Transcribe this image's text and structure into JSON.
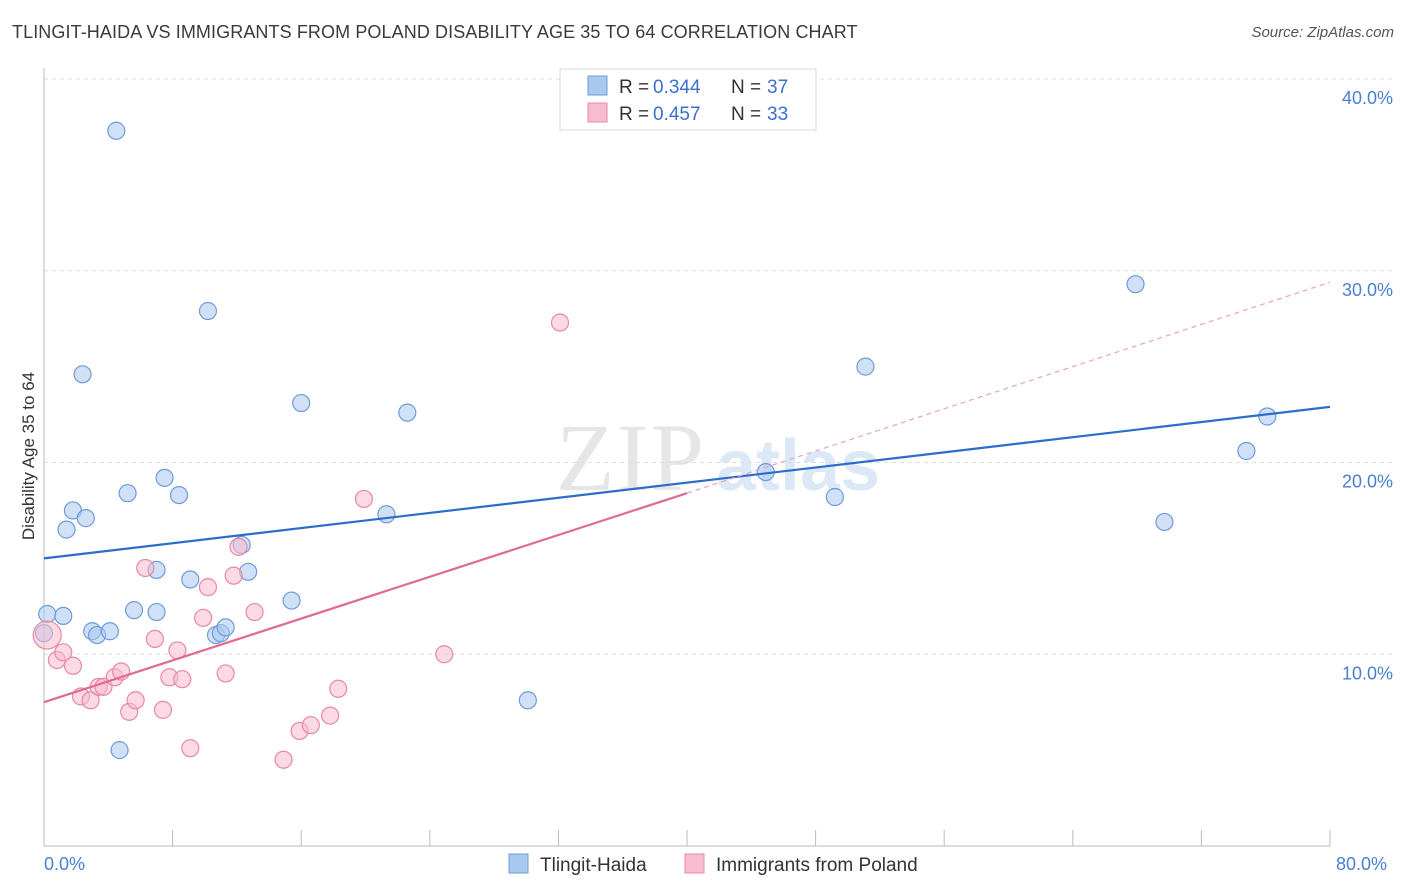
{
  "title": "TLINGIT-HAIDA VS IMMIGRANTS FROM POLAND DISABILITY AGE 35 TO 64 CORRELATION CHART",
  "source": "Source: ZipAtlas.com",
  "chart_data": {
    "type": "scatter",
    "title": "TLINGIT-HAIDA VS IMMIGRANTS FROM POLAND DISABILITY AGE 35 TO 64 CORRELATION CHART",
    "xlabel": "",
    "ylabel": "Disability Age 35 to 64",
    "xlim": [
      0,
      80
    ],
    "ylim": [
      0,
      40
    ],
    "x_tick_labels": [
      "0.0%",
      "80.0%"
    ],
    "y_ticks": [
      10,
      20,
      30,
      40
    ],
    "y_tick_labels": [
      "10.0%",
      "20.0%",
      "30.0%",
      "40.0%"
    ],
    "watermark": {
      "zip": "ZIP",
      "atlas": "atlas"
    },
    "legend": {
      "r_label": "R = ",
      "n_label": "N = ",
      "entries": [
        {
          "name": "Tlingit-Haida",
          "r": "0.344",
          "n": "37",
          "color": "#a9c8f0",
          "stroke": "#6f9bd8"
        },
        {
          "name": "Immigrants from Poland",
          "r": "0.457",
          "n": "33",
          "color": "#f7bcd0",
          "stroke": "#e7899f"
        }
      ]
    },
    "series": [
      {
        "name": "Tlingit-Haida",
        "color": "#a9c8f0",
        "stroke": "#6f9bd8",
        "line_color": "#2b6ccc",
        "trend": {
          "x0": 0,
          "y0": 15.0,
          "x1": 80,
          "y1": 22.9
        },
        "points": [
          [
            0.2,
            12.1
          ],
          [
            1.2,
            12.0
          ],
          [
            1.4,
            16.5
          ],
          [
            1.8,
            17.5
          ],
          [
            2.4,
            24.6
          ],
          [
            2.6,
            17.1
          ],
          [
            3.0,
            11.2
          ],
          [
            3.3,
            11.0
          ],
          [
            4.1,
            11.2
          ],
          [
            4.5,
            37.3
          ],
          [
            4.7,
            5.0
          ],
          [
            5.2,
            18.4
          ],
          [
            5.6,
            12.3
          ],
          [
            7.0,
            14.4
          ],
          [
            7.0,
            12.2
          ],
          [
            7.5,
            19.2
          ],
          [
            8.4,
            18.3
          ],
          [
            9.1,
            13.9
          ],
          [
            10.2,
            27.9
          ],
          [
            10.7,
            11.0
          ],
          [
            11.0,
            11.1
          ],
          [
            11.3,
            11.4
          ],
          [
            12.3,
            15.7
          ],
          [
            12.7,
            14.3
          ],
          [
            15.4,
            12.8
          ],
          [
            16.0,
            23.1
          ],
          [
            21.3,
            17.3
          ],
          [
            22.6,
            22.6
          ],
          [
            30.1,
            7.6
          ],
          [
            44.9,
            19.5
          ],
          [
            49.2,
            18.2
          ],
          [
            51.1,
            25.0
          ],
          [
            67.9,
            29.3
          ],
          [
            69.7,
            16.9
          ],
          [
            74.8,
            20.6
          ],
          [
            76.1,
            22.4
          ],
          [
            0.0,
            11.1
          ]
        ]
      },
      {
        "name": "Immigrants from Poland",
        "color": "#f7bcd0",
        "stroke": "#e7899f",
        "line_color": "#e06a93",
        "trend": {
          "x0": 0,
          "y0": 7.5,
          "x1": 40,
          "y1": 18.4
        },
        "trend_ext": {
          "x0": 40,
          "y0": 18.4,
          "x1": 80,
          "y1": 29.4
        },
        "points": [
          [
            0.2,
            11.0
          ],
          [
            0.8,
            9.7
          ],
          [
            1.2,
            10.1
          ],
          [
            1.8,
            9.4
          ],
          [
            2.3,
            7.8
          ],
          [
            2.9,
            7.6
          ],
          [
            3.4,
            8.3
          ],
          [
            3.7,
            8.3
          ],
          [
            4.4,
            8.8
          ],
          [
            4.8,
            9.1
          ],
          [
            5.3,
            7.0
          ],
          [
            5.7,
            7.6
          ],
          [
            6.3,
            14.5
          ],
          [
            6.9,
            10.8
          ],
          [
            7.4,
            7.1
          ],
          [
            7.8,
            8.8
          ],
          [
            8.3,
            10.2
          ],
          [
            8.6,
            8.7
          ],
          [
            9.1,
            5.1
          ],
          [
            9.9,
            11.9
          ],
          [
            10.2,
            13.5
          ],
          [
            11.3,
            9.0
          ],
          [
            11.8,
            14.1
          ],
          [
            12.1,
            15.6
          ],
          [
            13.1,
            12.2
          ],
          [
            14.9,
            4.5
          ],
          [
            15.9,
            6.0
          ],
          [
            16.6,
            6.3
          ],
          [
            17.8,
            6.8
          ],
          [
            18.3,
            8.2
          ],
          [
            19.9,
            18.1
          ],
          [
            24.9,
            10.0
          ],
          [
            32.1,
            27.3
          ]
        ]
      }
    ]
  }
}
